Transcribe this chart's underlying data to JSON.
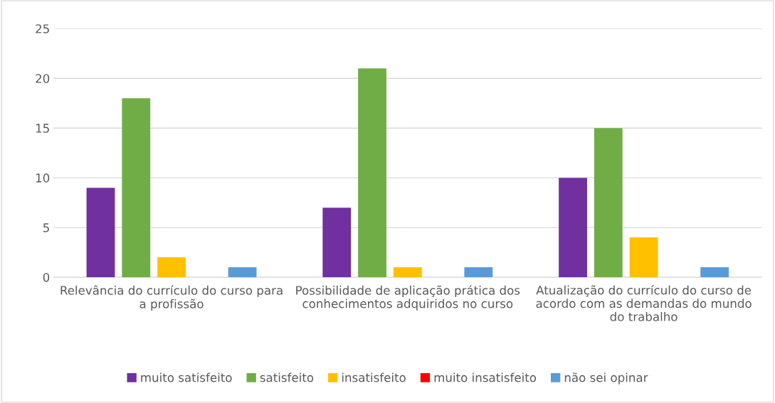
{
  "chart_data": {
    "type": "bar",
    "categories": [
      "Relevância do currículo do curso para a profissão",
      "Possibilidade de aplicação prática dos conhecimentos adquiridos no curso",
      "Atualização do currículo do curso de acordo com as demandas do mundo do trabalho"
    ],
    "series": [
      {
        "name": "muito satisfeito",
        "color": "#7030a0",
        "values": [
          9,
          7,
          10
        ]
      },
      {
        "name": "satisfeito",
        "color": "#70ad47",
        "values": [
          18,
          21,
          15
        ]
      },
      {
        "name": "insatisfeito",
        "color": "#ffc000",
        "values": [
          2,
          1,
          4
        ]
      },
      {
        "name": "muito insatisfeito",
        "color": "#ff0000",
        "values": [
          0,
          0,
          0
        ]
      },
      {
        "name": "não sei opinar",
        "color": "#5b9bd5",
        "values": [
          1,
          1,
          1
        ]
      }
    ],
    "ylim": [
      0,
      25
    ],
    "yticks": [
      0,
      5,
      10,
      15,
      20,
      25
    ],
    "grid": "y",
    "legend": "bottom"
  }
}
